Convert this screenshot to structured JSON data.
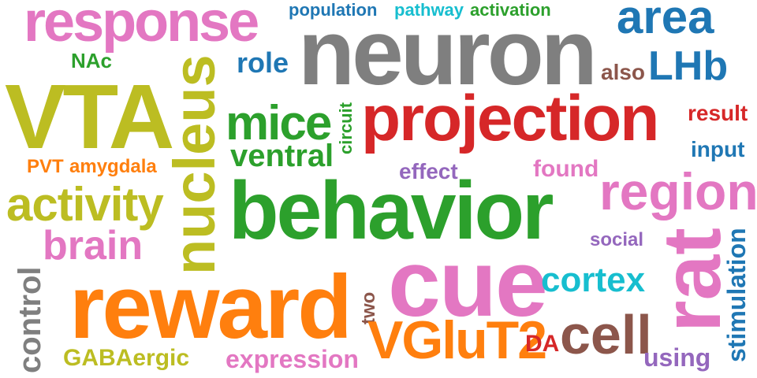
{
  "words": [
    {
      "text": "response",
      "color": "#e377c2"
    },
    {
      "text": "neuron",
      "color": "#7f7f7f"
    },
    {
      "text": "population",
      "color": "#1f77b4"
    },
    {
      "text": "pathway",
      "color": "#17becf"
    },
    {
      "text": "activation",
      "color": "#2ca02c"
    },
    {
      "text": "area",
      "color": "#1f77b4"
    },
    {
      "text": "NAc",
      "color": "#2ca02c"
    },
    {
      "text": "role",
      "color": "#1f77b4"
    },
    {
      "text": "also",
      "color": "#8c564b"
    },
    {
      "text": "LHb",
      "color": "#1f77b4"
    },
    {
      "text": "VTA",
      "color": "#bcbd22"
    },
    {
      "text": "nucleus",
      "color": "#bcbd22"
    },
    {
      "text": "mice",
      "color": "#2ca02c"
    },
    {
      "text": "circuit",
      "color": "#2ca02c"
    },
    {
      "text": "projection",
      "color": "#d62728"
    },
    {
      "text": "result",
      "color": "#d62728"
    },
    {
      "text": "ventral",
      "color": "#2ca02c"
    },
    {
      "text": "input",
      "color": "#1f77b4"
    },
    {
      "text": "PVT",
      "color": "#ff7f0e"
    },
    {
      "text": "amygdala",
      "color": "#ff7f0e"
    },
    {
      "text": "effect",
      "color": "#9467bd"
    },
    {
      "text": "found",
      "color": "#e377c2"
    },
    {
      "text": "activity",
      "color": "#bcbd22"
    },
    {
      "text": "behavior",
      "color": "#2ca02c"
    },
    {
      "text": "region",
      "color": "#e377c2"
    },
    {
      "text": "brain",
      "color": "#e377c2"
    },
    {
      "text": "social",
      "color": "#9467bd"
    },
    {
      "text": "rat",
      "color": "#e377c2"
    },
    {
      "text": "stimulation",
      "color": "#1f77b4"
    },
    {
      "text": "control",
      "color": "#7f7f7f"
    },
    {
      "text": "reward",
      "color": "#ff7f0e"
    },
    {
      "text": "cue",
      "color": "#e377c2"
    },
    {
      "text": "cortex",
      "color": "#17becf"
    },
    {
      "text": "two",
      "color": "#8c564b"
    },
    {
      "text": "VGluT2",
      "color": "#ff7f0e"
    },
    {
      "text": "DA",
      "color": "#d62728"
    },
    {
      "text": "cell",
      "color": "#8c564b"
    },
    {
      "text": "using",
      "color": "#9467bd"
    },
    {
      "text": "GABAergic",
      "color": "#bcbd22"
    },
    {
      "text": "expression",
      "color": "#e377c2"
    }
  ]
}
